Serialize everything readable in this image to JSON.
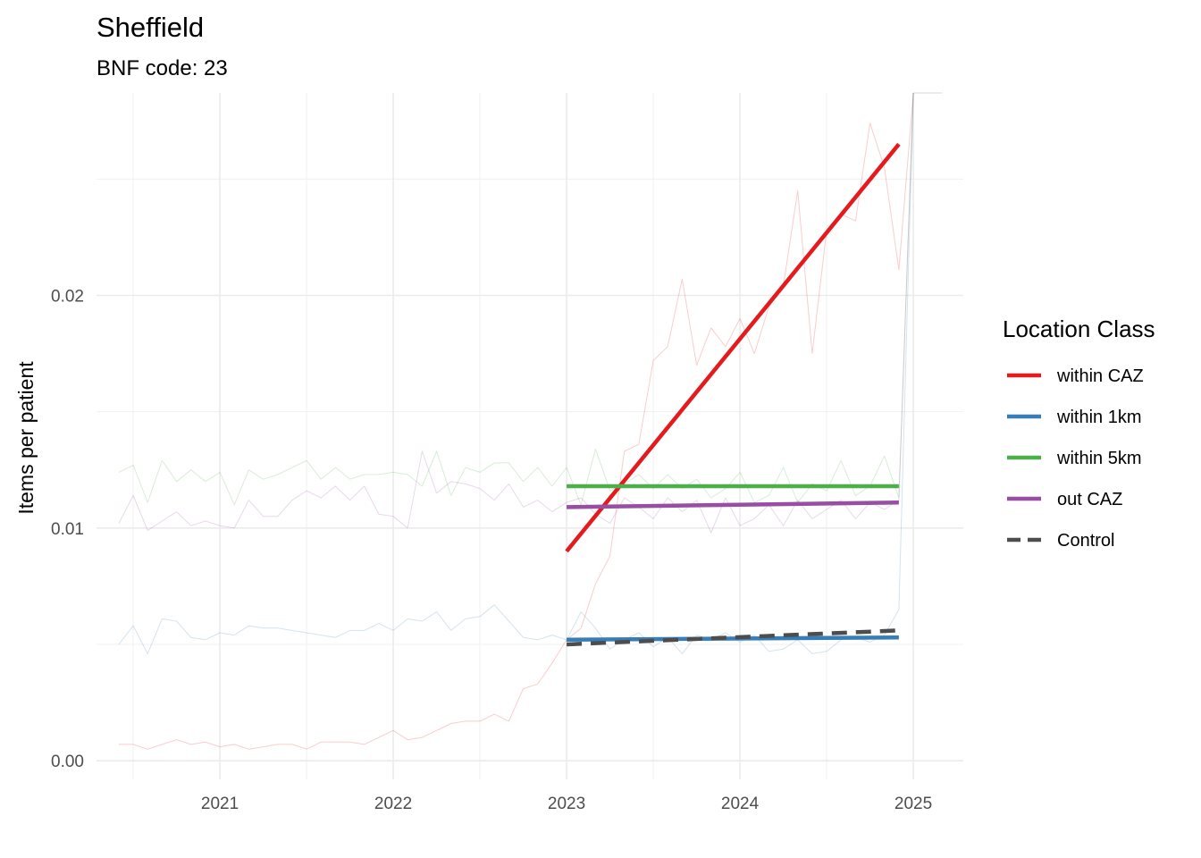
{
  "chart_data": {
    "type": "line",
    "title": "Sheffield",
    "subtitle": "BNF code: 23",
    "xlabel": "",
    "ylabel": "Items per patient",
    "x_ticks": [
      "2021",
      "2022",
      "2023",
      "2024",
      "2025"
    ],
    "y_ticks": [
      "0.00",
      "0.01",
      "0.02"
    ],
    "xlim": [
      "2020-04-15",
      "2025-04-15"
    ],
    "ylim": [
      -0.0008,
      0.0287
    ],
    "grid": true,
    "legend": {
      "title": "Location Class",
      "position": "right",
      "items": [
        {
          "name": "within CAZ",
          "color": "#e41a1c",
          "dashed": false
        },
        {
          "name": "within 1km",
          "color": "#377eb8",
          "dashed": false
        },
        {
          "name": "within 5km",
          "color": "#4daf4a",
          "dashed": false
        },
        {
          "name": "out CAZ",
          "color": "#984ea3",
          "dashed": false
        },
        {
          "name": "Control",
          "color": "#4d4d4d",
          "dashed": true
        }
      ]
    },
    "raw_series": [
      {
        "name": "within CAZ",
        "color": "#e41a1c",
        "x": [
          "2020-06",
          "2020-07",
          "2020-08",
          "2020-09",
          "2020-10",
          "2020-11",
          "2020-12",
          "2021-01",
          "2021-02",
          "2021-03",
          "2021-04",
          "2021-05",
          "2021-06",
          "2021-07",
          "2021-08",
          "2021-09",
          "2021-10",
          "2021-11",
          "2021-12",
          "2022-01",
          "2022-02",
          "2022-03",
          "2022-04",
          "2022-05",
          "2022-06",
          "2022-07",
          "2022-08",
          "2022-09",
          "2022-10",
          "2022-11",
          "2022-12",
          "2023-01",
          "2023-02",
          "2023-03",
          "2023-04",
          "2023-05",
          "2023-06",
          "2023-07",
          "2023-08",
          "2023-09",
          "2023-10",
          "2023-11",
          "2023-12",
          "2024-01",
          "2024-02",
          "2024-03",
          "2024-04",
          "2024-05",
          "2024-06",
          "2024-07",
          "2024-08",
          "2024-09",
          "2024-10",
          "2024-11",
          "2024-12",
          "2025-01"
        ],
        "y": [
          0.0007,
          0.0007,
          0.0005,
          0.0007,
          0.0009,
          0.0007,
          0.0008,
          0.0006,
          0.0007,
          0.0005,
          0.0006,
          0.0007,
          0.0007,
          0.0005,
          0.0008,
          0.0008,
          0.0008,
          0.0007,
          0.001,
          0.0013,
          0.0009,
          0.001,
          0.0013,
          0.0016,
          0.0017,
          0.0017,
          0.002,
          0.0017,
          0.0031,
          0.0033,
          0.0042,
          0.0052,
          0.0057,
          0.0076,
          0.0088,
          0.0133,
          0.0136,
          0.0172,
          0.0178,
          0.0207,
          0.017,
          0.0186,
          0.0178,
          0.019,
          0.0175,
          0.0195,
          0.0204,
          0.0245,
          0.0175,
          0.0228,
          0.0235,
          0.0232,
          0.0274,
          0.0255,
          0.0211,
          0.0287
        ]
      },
      {
        "name": "within 1km",
        "color": "#377eb8",
        "x": [
          "2020-06",
          "2020-07",
          "2020-08",
          "2020-09",
          "2020-10",
          "2020-11",
          "2020-12",
          "2021-01",
          "2021-02",
          "2021-03",
          "2021-04",
          "2021-05",
          "2021-06",
          "2021-07",
          "2021-08",
          "2021-09",
          "2021-10",
          "2021-11",
          "2021-12",
          "2022-01",
          "2022-02",
          "2022-03",
          "2022-04",
          "2022-05",
          "2022-06",
          "2022-07",
          "2022-08",
          "2022-09",
          "2022-10",
          "2022-11",
          "2022-12",
          "2023-01",
          "2023-02",
          "2023-03",
          "2023-04",
          "2023-05",
          "2023-06",
          "2023-07",
          "2023-08",
          "2023-09",
          "2023-10",
          "2023-11",
          "2023-12",
          "2024-01",
          "2024-02",
          "2024-03",
          "2024-04",
          "2024-05",
          "2024-06",
          "2024-07",
          "2024-08",
          "2024-09",
          "2024-10",
          "2024-11",
          "2024-12",
          "2025-01"
        ],
        "y": [
          0.005,
          0.0058,
          0.0046,
          0.0061,
          0.006,
          0.0053,
          0.0052,
          0.0055,
          0.0054,
          0.0058,
          0.0057,
          0.0057,
          0.0056,
          0.0055,
          0.0054,
          0.0053,
          0.0056,
          0.0056,
          0.0059,
          0.0056,
          0.0061,
          0.006,
          0.0064,
          0.0056,
          0.0061,
          0.0062,
          0.0067,
          0.006,
          0.0053,
          0.0052,
          0.0054,
          0.0052,
          0.0064,
          0.0057,
          0.0048,
          0.0052,
          0.0055,
          0.0049,
          0.0053,
          0.0046,
          0.0054,
          0.0052,
          0.0055,
          0.0051,
          0.0054,
          0.0047,
          0.0048,
          0.0052,
          0.0046,
          0.0047,
          0.0052,
          0.0053,
          0.0051,
          0.0054,
          0.0065,
          0.0287
        ]
      },
      {
        "name": "within 5km",
        "color": "#4daf4a",
        "x": [
          "2020-06",
          "2020-07",
          "2020-08",
          "2020-09",
          "2020-10",
          "2020-11",
          "2020-12",
          "2021-01",
          "2021-02",
          "2021-03",
          "2021-04",
          "2021-05",
          "2021-06",
          "2021-07",
          "2021-08",
          "2021-09",
          "2021-10",
          "2021-11",
          "2021-12",
          "2022-01",
          "2022-02",
          "2022-03",
          "2022-04",
          "2022-05",
          "2022-06",
          "2022-07",
          "2022-08",
          "2022-09",
          "2022-10",
          "2022-11",
          "2022-12",
          "2023-01",
          "2023-02",
          "2023-03",
          "2023-04",
          "2023-05",
          "2023-06",
          "2023-07",
          "2023-08",
          "2023-09",
          "2023-10",
          "2023-11",
          "2023-12",
          "2024-01",
          "2024-02",
          "2024-03",
          "2024-04",
          "2024-05",
          "2024-06",
          "2024-07",
          "2024-08",
          "2024-09",
          "2024-10",
          "2024-11",
          "2024-12",
          "2025-01"
        ],
        "y": [
          0.0124,
          0.0127,
          0.0111,
          0.0129,
          0.012,
          0.0125,
          0.012,
          0.0124,
          0.011,
          0.0125,
          0.0121,
          0.0123,
          0.0126,
          0.0129,
          0.0121,
          0.0126,
          0.0121,
          0.0123,
          0.0123,
          0.0124,
          0.0123,
          0.0118,
          0.0133,
          0.0114,
          0.0126,
          0.0124,
          0.0128,
          0.0128,
          0.012,
          0.0126,
          0.0118,
          0.0126,
          0.011,
          0.0134,
          0.0116,
          0.0119,
          0.0123,
          0.0117,
          0.0123,
          0.0117,
          0.0121,
          0.0113,
          0.0117,
          0.0124,
          0.0111,
          0.0114,
          0.0126,
          0.0111,
          0.0119,
          0.0116,
          0.0129,
          0.0114,
          0.0118,
          0.0131,
          0.0113,
          0.0287
        ]
      },
      {
        "name": "out CAZ",
        "color": "#984ea3",
        "x": [
          "2020-06",
          "2020-07",
          "2020-08",
          "2020-09",
          "2020-10",
          "2020-11",
          "2020-12",
          "2021-01",
          "2021-02",
          "2021-03",
          "2021-04",
          "2021-05",
          "2021-06",
          "2021-07",
          "2021-08",
          "2021-09",
          "2021-10",
          "2021-11",
          "2021-12",
          "2022-01",
          "2022-02",
          "2022-03",
          "2022-04",
          "2022-05",
          "2022-06",
          "2022-07",
          "2022-08",
          "2022-09",
          "2022-10",
          "2022-11",
          "2022-12",
          "2023-01",
          "2023-02",
          "2023-03",
          "2023-04",
          "2023-05",
          "2023-06",
          "2023-07",
          "2023-08",
          "2023-09",
          "2023-10",
          "2023-11",
          "2023-12",
          "2024-01",
          "2024-02",
          "2024-03",
          "2024-04",
          "2024-05",
          "2024-06",
          "2024-07",
          "2024-08",
          "2024-09",
          "2024-10",
          "2024-11",
          "2024-12",
          "2025-01"
        ],
        "y": [
          0.0102,
          0.0114,
          0.0099,
          0.0103,
          0.0107,
          0.0101,
          0.0103,
          0.0101,
          0.01,
          0.0112,
          0.0105,
          0.0105,
          0.0112,
          0.0116,
          0.0113,
          0.0118,
          0.0112,
          0.0118,
          0.0106,
          0.0105,
          0.01,
          0.0133,
          0.0115,
          0.012,
          0.0119,
          0.0117,
          0.0112,
          0.0119,
          0.0109,
          0.0112,
          0.0107,
          0.0111,
          0.0113,
          0.0106,
          0.0102,
          0.0113,
          0.0109,
          0.0104,
          0.0113,
          0.0107,
          0.0112,
          0.0098,
          0.0113,
          0.0101,
          0.0104,
          0.011,
          0.0101,
          0.0112,
          0.0104,
          0.0108,
          0.0112,
          0.0104,
          0.0111,
          0.0108,
          0.0112,
          0.0287
        ]
      },
      {
        "name": "Control",
        "color": "#4d4d4d",
        "x": [
          "2025-01",
          "2025-02",
          "2025-03"
        ],
        "y": [
          0.0287,
          0.0287,
          0.0287
        ]
      }
    ],
    "trend_series": [
      {
        "name": "within CAZ",
        "color": "#e41a1c",
        "dashed": false,
        "x": [
          "2023-01-01",
          "2024-12-01"
        ],
        "y": [
          0.009,
          0.0265
        ]
      },
      {
        "name": "within 1km",
        "color": "#377eb8",
        "dashed": false,
        "x": [
          "2023-01-01",
          "2024-12-01"
        ],
        "y": [
          0.0052,
          0.0053
        ]
      },
      {
        "name": "within 5km",
        "color": "#4daf4a",
        "dashed": false,
        "x": [
          "2023-01-01",
          "2024-12-01"
        ],
        "y": [
          0.0118,
          0.0118
        ]
      },
      {
        "name": "out CAZ",
        "color": "#984ea3",
        "dashed": false,
        "x": [
          "2023-01-01",
          "2024-12-01"
        ],
        "y": [
          0.0109,
          0.0111
        ]
      },
      {
        "name": "Control",
        "color": "#4d4d4d",
        "dashed": true,
        "x": [
          "2023-01-01",
          "2024-12-01"
        ],
        "y": [
          0.005,
          0.0056
        ]
      }
    ]
  }
}
